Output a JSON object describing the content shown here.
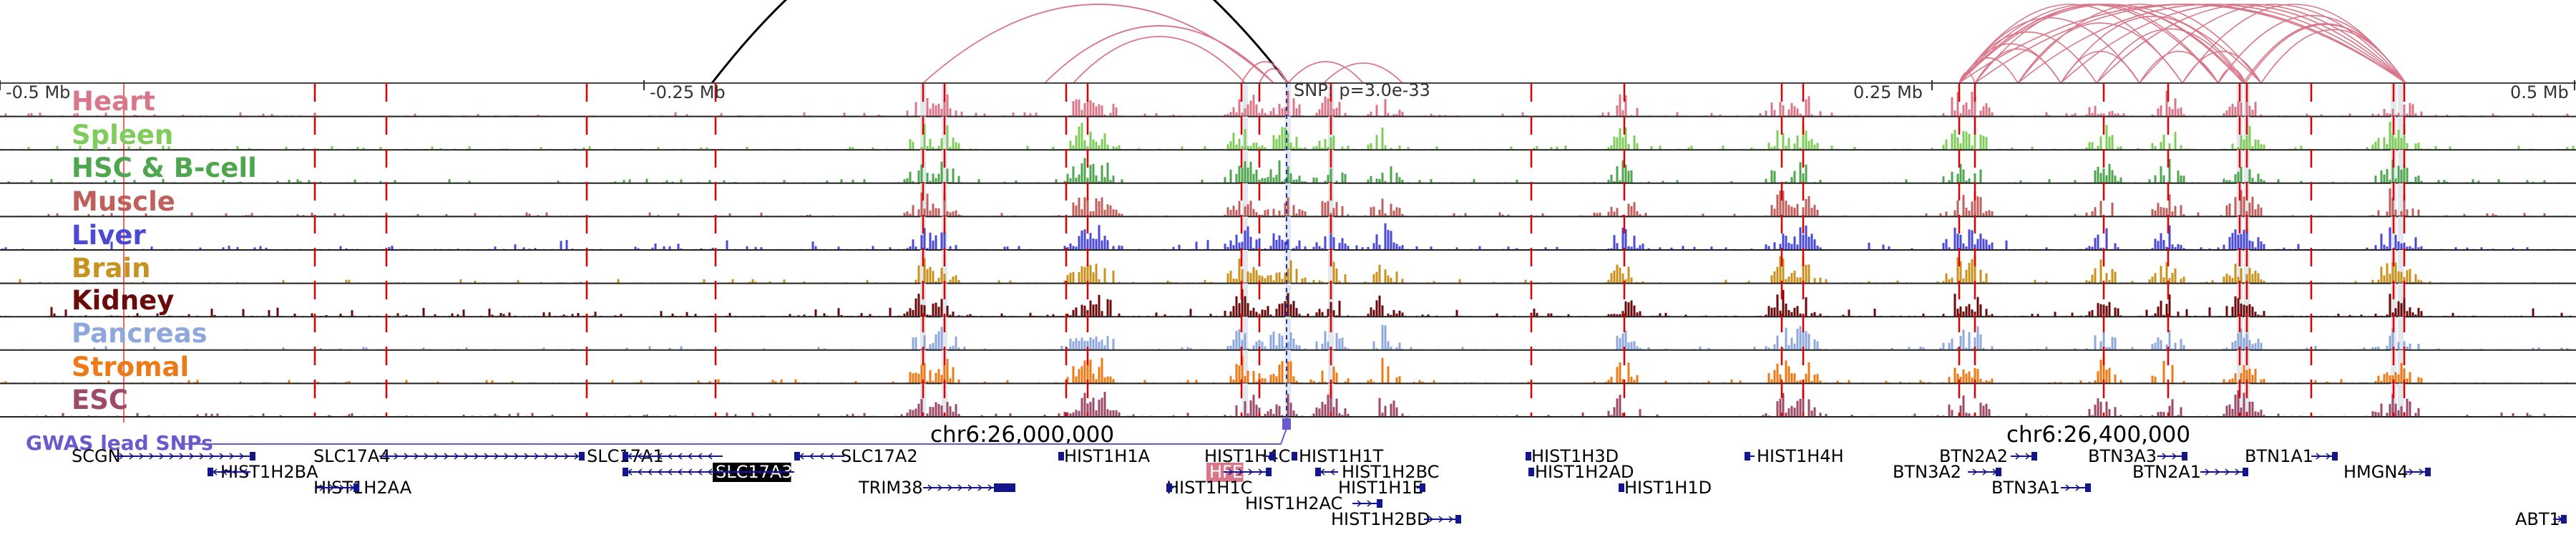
{
  "scale_labels": [
    "-0.5 Mb",
    "-0.25 Mb",
    "0.25 Mb",
    "0.5 Mb"
  ],
  "snp_label": "SNP: p=3.0e-33",
  "coordinate_labels": [
    "chr6:26,000,000",
    "chr6:26,400,000"
  ],
  "gwas_label": "GWAS lead SNPs",
  "tracks": [
    {
      "name": "Heart",
      "color": "#d9778a"
    },
    {
      "name": "Spleen",
      "color": "#7fcc5a"
    },
    {
      "name": "HSC & B-cell",
      "color": "#4ea64e"
    },
    {
      "name": "Muscle",
      "color": "#c0605c"
    },
    {
      "name": "Liver",
      "color": "#4a4ad6"
    },
    {
      "name": "Brain",
      "color": "#c8921e"
    },
    {
      "name": "Kidney",
      "color": "#6b0a0a"
    },
    {
      "name": "Pancreas",
      "color": "#8fa8dc"
    },
    {
      "name": "Stromal",
      "color": "#ee7a16"
    },
    {
      "name": "ESC",
      "color": "#9c4a68"
    }
  ],
  "genes": [
    {
      "name": "SCGN"
    },
    {
      "name": "HIST1H2BA"
    },
    {
      "name": "HIST1H2AA"
    },
    {
      "name": "SLC17A4"
    },
    {
      "name": "SLC17A1"
    },
    {
      "name": "SLC17A3"
    },
    {
      "name": "SLC17A2"
    },
    {
      "name": "TRIM38"
    },
    {
      "name": "HIST1H1A"
    },
    {
      "name": "HIST1H4C"
    },
    {
      "name": "HFE"
    },
    {
      "name": "HIST1H1C"
    },
    {
      "name": "HIST1H2AC"
    },
    {
      "name": "HIST1H1T"
    },
    {
      "name": "HIST1H2BC"
    },
    {
      "name": "HIST1H1E"
    },
    {
      "name": "HIST1H2BD"
    },
    {
      "name": "HIST1H3D"
    },
    {
      "name": "HIST1H2AD"
    },
    {
      "name": "HIST1H1D"
    },
    {
      "name": "HIST1H4H"
    },
    {
      "name": "BTN2A2"
    },
    {
      "name": "BTN3A2"
    },
    {
      "name": "BTN3A3"
    },
    {
      "name": "BTN3A1"
    },
    {
      "name": "BTN2A1"
    },
    {
      "name": "BTN1A1"
    },
    {
      "name": "HMGN4"
    },
    {
      "name": "ABT1"
    }
  ],
  "colors": {
    "arc": "#d9778a",
    "lead_arc": "#000000",
    "gwas": "#6a5acd",
    "gene": "#14148c",
    "region_line": "#e00000"
  }
}
